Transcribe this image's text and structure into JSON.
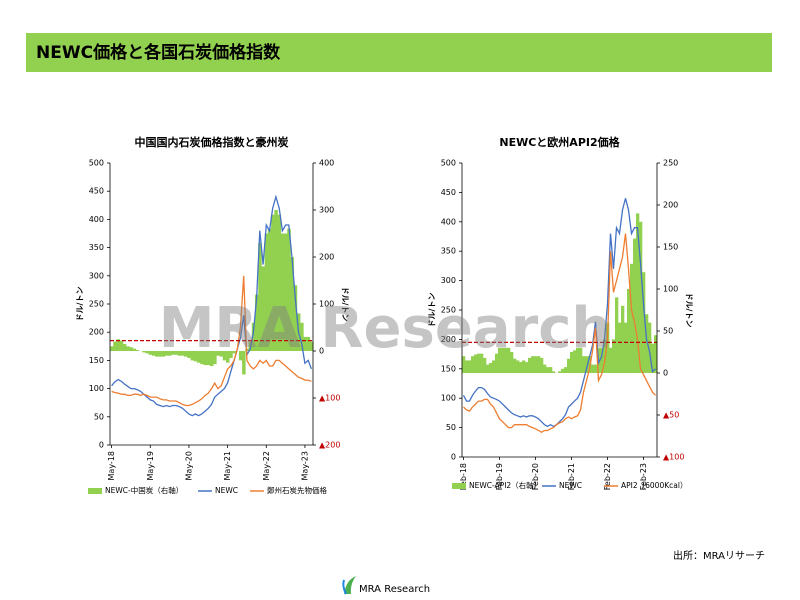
{
  "header": {
    "title": "NEWC価格と各国石炭価格指数"
  },
  "source": "出所：MRAリサーチ",
  "logo": "MRA Research",
  "watermark": "MRA Research",
  "chart_data": [
    {
      "type": "line",
      "title": "中国国内石炭価格指数と豪州炭",
      "y_label": "ドル/トン",
      "y2_label": "ドル/トン",
      "categories": [
        "May-18",
        null,
        null,
        null,
        null,
        null,
        null,
        null,
        null,
        null,
        null,
        null,
        "May-19",
        null,
        null,
        null,
        null,
        null,
        null,
        null,
        null,
        null,
        null,
        null,
        "May-20",
        null,
        null,
        null,
        null,
        null,
        null,
        null,
        null,
        null,
        null,
        null,
        "May-21",
        null,
        null,
        null,
        null,
        null,
        null,
        null,
        null,
        null,
        null,
        null,
        "May-22",
        null,
        null,
        null,
        null,
        null,
        null,
        null,
        null,
        null,
        null,
        null,
        "May-23",
        null,
        null
      ],
      "ylim": [
        0,
        500
      ],
      "yticks": [
        0,
        50,
        100,
        150,
        200,
        250,
        300,
        350,
        400,
        450,
        500
      ],
      "y2lim": [
        -200,
        400
      ],
      "y2ticks": [
        {
          "value": -200,
          "label": "▲200"
        },
        {
          "value": -100,
          "label": "▲100"
        },
        0,
        100,
        200,
        300,
        400
      ],
      "negative_tick_color": "#c00000",
      "reference_line": {
        "value": 185,
        "color": "#c00000"
      },
      "series": [
        {
          "name": "NEWC-中国炭（右軸）",
          "type": "bar",
          "axis": "y2",
          "color": "#92d050",
          "values": [
            10,
            20,
            25,
            22,
            15,
            10,
            8,
            5,
            2,
            0,
            -3,
            -5,
            -8,
            -10,
            -12,
            -12,
            -12,
            -10,
            -10,
            -8,
            -8,
            -10,
            -10,
            -12,
            -15,
            -20,
            -22,
            -25,
            -28,
            -30,
            -30,
            -32,
            -28,
            -10,
            -12,
            -20,
            -25,
            -15,
            -5,
            0,
            -20,
            -50,
            5,
            20,
            60,
            120,
            230,
            180,
            250,
            260,
            290,
            300,
            290,
            250,
            250,
            260,
            200,
            140,
            80,
            60,
            30,
            30,
            20
          ]
        },
        {
          "name": "NEWC",
          "type": "line",
          "color": "#4472c4",
          "values": [
            105,
            112,
            116,
            113,
            108,
            104,
            100,
            100,
            98,
            95,
            90,
            85,
            80,
            78,
            72,
            70,
            68,
            70,
            68,
            70,
            70,
            68,
            65,
            60,
            55,
            52,
            55,
            52,
            55,
            60,
            65,
            72,
            85,
            90,
            95,
            100,
            110,
            130,
            150,
            170,
            190,
            230,
            160,
            170,
            200,
            260,
            380,
            320,
            390,
            380,
            420,
            440,
            420,
            380,
            390,
            390,
            330,
            260,
            200,
            180,
            145,
            150,
            135
          ]
        },
        {
          "name": "鄭州石炭先物価格",
          "type": "line",
          "color": "#ed7d31",
          "values": [
            95,
            93,
            92,
            90,
            90,
            88,
            88,
            90,
            90,
            88,
            90,
            88,
            85,
            85,
            85,
            82,
            80,
            80,
            78,
            78,
            78,
            75,
            72,
            70,
            70,
            72,
            75,
            78,
            82,
            88,
            92,
            100,
            110,
            100,
            105,
            120,
            135,
            140,
            150,
            170,
            210,
            300,
            150,
            140,
            135,
            140,
            150,
            145,
            150,
            140,
            140,
            150,
            150,
            145,
            140,
            135,
            130,
            125,
            120,
            118,
            115,
            115,
            113
          ]
        }
      ]
    },
    {
      "type": "line",
      "title": "NEWCと欧州API2価格",
      "y_label": "ドル/トン",
      "y2_label": "ドル/トン",
      "categories": [
        "Feb-18",
        null,
        null,
        null,
        null,
        null,
        null,
        null,
        null,
        null,
        null,
        null,
        "Feb-19",
        null,
        null,
        null,
        null,
        null,
        null,
        null,
        null,
        null,
        null,
        null,
        "Feb-20",
        null,
        null,
        null,
        null,
        null,
        null,
        null,
        null,
        null,
        null,
        null,
        "Feb-21",
        null,
        null,
        null,
        null,
        null,
        null,
        null,
        null,
        null,
        null,
        null,
        "Feb-22",
        null,
        null,
        null,
        null,
        null,
        null,
        null,
        null,
        null,
        null,
        null,
        "Feb-23",
        null,
        null,
        null,
        null
      ],
      "ylim": [
        0,
        500
      ],
      "yticks": [
        0,
        50,
        100,
        150,
        200,
        250,
        300,
        350,
        400,
        450,
        500
      ],
      "y2lim": [
        -100,
        250
      ],
      "y2ticks": [
        {
          "value": -100,
          "label": "▲100"
        },
        {
          "value": -50,
          "label": "▲50"
        },
        0,
        50,
        100,
        150,
        200,
        250
      ],
      "negative_tick_color": "#c00000",
      "reference_line": {
        "value": 195,
        "color": "#c00000"
      },
      "series": [
        {
          "name": "NEWC-API2（右軸）",
          "type": "bar",
          "axis": "y2",
          "color": "#92d050",
          "values": [
            20,
            15,
            15,
            20,
            22,
            23,
            23,
            18,
            10,
            12,
            15,
            23,
            30,
            30,
            30,
            30,
            25,
            17,
            15,
            13,
            15,
            13,
            18,
            20,
            20,
            20,
            18,
            10,
            7,
            7,
            2,
            0,
            2,
            5,
            7,
            17,
            25,
            27,
            30,
            30,
            20,
            20,
            20,
            10,
            10,
            30,
            30,
            40,
            60,
            30,
            40,
            90,
            60,
            80,
            60,
            100,
            130,
            160,
            190,
            180,
            120,
            70,
            60,
            35,
            45
          ]
        },
        {
          "name": "NEWC",
          "type": "line",
          "color": "#4472c4",
          "values": [
            105,
            95,
            95,
            105,
            112,
            118,
            118,
            115,
            108,
            102,
            100,
            98,
            95,
            90,
            85,
            80,
            75,
            72,
            70,
            68,
            70,
            68,
            70,
            70,
            68,
            65,
            60,
            55,
            52,
            55,
            52,
            55,
            60,
            65,
            72,
            85,
            90,
            95,
            100,
            110,
            130,
            150,
            170,
            190,
            230,
            160,
            170,
            200,
            260,
            380,
            320,
            390,
            380,
            420,
            440,
            420,
            380,
            390,
            390,
            330,
            260,
            200,
            180,
            145,
            150
          ]
        },
        {
          "name": "API2（6000Kcal）",
          "type": "line",
          "color": "#ed7d31",
          "values": [
            85,
            80,
            78,
            85,
            90,
            95,
            95,
            98,
            98,
            90,
            85,
            75,
            65,
            60,
            55,
            50,
            50,
            55,
            55,
            55,
            55,
            55,
            52,
            50,
            48,
            45,
            42,
            45,
            45,
            48,
            50,
            55,
            58,
            60,
            65,
            68,
            65,
            68,
            70,
            80,
            110,
            130,
            150,
            180,
            220,
            130,
            140,
            160,
            200,
            350,
            280,
            300,
            320,
            340,
            380,
            320,
            250,
            230,
            200,
            150,
            140,
            130,
            120,
            110,
            105
          ]
        }
      ]
    }
  ]
}
